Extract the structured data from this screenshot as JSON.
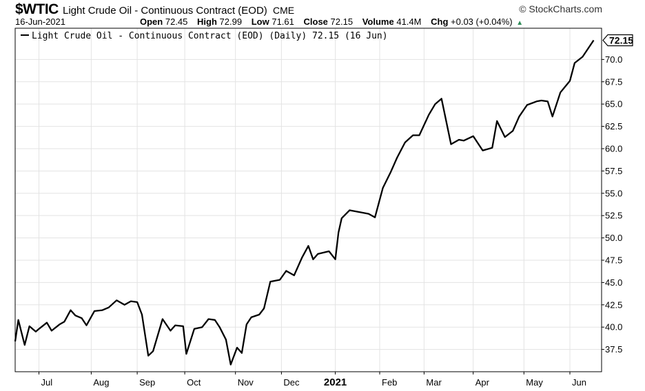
{
  "header": {
    "symbol": "$WTIC",
    "name": "Light Crude Oil - Continuous Contract (EOD)",
    "exchange": "CME",
    "brand": "© StockCharts.com",
    "date": "16-Jun-2021",
    "open_label": "Open",
    "open": "72.45",
    "high_label": "High",
    "high": "72.99",
    "low_label": "Low",
    "low": "71.61",
    "close_label": "Close",
    "close": "72.15",
    "volume_label": "Volume",
    "volume": "41.4M",
    "chg_label": "Chg",
    "chg": "+0.03 (+0.04%)",
    "chg_arrow": "▲",
    "up_color": "#2e8b57"
  },
  "chart_data": {
    "type": "line",
    "legend": "Light Crude Oil - Continuous Contract (EOD) (Daily) 72.15 (16 Jun)",
    "last_value_label": "72.15",
    "last_value": 72.15,
    "ylim": [
      35.0,
      73.5
    ],
    "y_ticks": [
      37.5,
      40.0,
      42.5,
      45.0,
      47.5,
      50.0,
      52.5,
      55.0,
      57.5,
      60.0,
      62.5,
      65.0,
      67.5,
      70.0
    ],
    "y_tick_labels": [
      "37.5",
      "40.0",
      "42.5",
      "45.0",
      "47.5",
      "50.0",
      "52.5",
      "55.0",
      "57.5",
      "60.0",
      "62.5",
      "65.0",
      "67.5",
      "70.0"
    ],
    "x_ticks": [
      {
        "label": "Jul",
        "date": "2020-07-01",
        "bold": false
      },
      {
        "label": "Aug",
        "date": "2020-08-03",
        "bold": false
      },
      {
        "label": "Sep",
        "date": "2020-09-01",
        "bold": false
      },
      {
        "label": "Oct",
        "date": "2020-10-01",
        "bold": false
      },
      {
        "label": "Nov",
        "date": "2020-11-02",
        "bold": false
      },
      {
        "label": "Dec",
        "date": "2020-12-01",
        "bold": false
      },
      {
        "label": "2021",
        "date": "2021-01-04",
        "bold": true
      },
      {
        "label": "Feb",
        "date": "2021-02-01",
        "bold": false
      },
      {
        "label": "Mar",
        "date": "2021-03-01",
        "bold": false
      },
      {
        "label": "Apr",
        "date": "2021-04-01",
        "bold": false
      },
      {
        "label": "May",
        "date": "2021-05-03",
        "bold": false
      },
      {
        "label": "Jun",
        "date": "2021-06-01",
        "bold": false
      }
    ],
    "grid": true,
    "legend_position": "top-left",
    "line_color": "#000000",
    "series": [
      {
        "x": [
          "2020-06-16",
          "2020-06-18",
          "2020-06-22",
          "2020-06-25",
          "2020-06-29",
          "2020-07-01",
          "2020-07-06",
          "2020-07-09",
          "2020-07-14",
          "2020-07-17",
          "2020-07-21",
          "2020-07-24",
          "2020-07-28",
          "2020-07-31",
          "2020-08-05",
          "2020-08-10",
          "2020-08-14",
          "2020-08-19",
          "2020-08-24",
          "2020-08-28",
          "2020-09-01",
          "2020-09-04",
          "2020-09-08",
          "2020-09-11",
          "2020-09-17",
          "2020-09-22",
          "2020-09-25",
          "2020-09-30",
          "2020-10-02",
          "2020-10-07",
          "2020-10-12",
          "2020-10-16",
          "2020-10-20",
          "2020-10-23",
          "2020-10-27",
          "2020-10-30",
          "2020-11-03",
          "2020-11-06",
          "2020-11-09",
          "2020-11-12",
          "2020-11-17",
          "2020-11-20",
          "2020-11-24",
          "2020-11-30",
          "2020-12-04",
          "2020-12-09",
          "2020-12-14",
          "2020-12-18",
          "2020-12-21",
          "2020-12-24",
          "2020-12-31",
          "2021-01-04",
          "2021-01-06",
          "2021-01-08",
          "2021-01-13",
          "2021-01-19",
          "2021-01-25",
          "2021-01-29",
          "2021-02-03",
          "2021-02-08",
          "2021-02-12",
          "2021-02-17",
          "2021-02-22",
          "2021-02-26",
          "2021-03-04",
          "2021-03-08",
          "2021-03-12",
          "2021-03-18",
          "2021-03-23",
          "2021-03-26",
          "2021-04-01",
          "2021-04-07",
          "2021-04-13",
          "2021-04-16",
          "2021-04-21",
          "2021-04-26",
          "2021-04-30",
          "2021-05-05",
          "2021-05-11",
          "2021-05-14",
          "2021-05-18",
          "2021-05-21",
          "2021-05-26",
          "2021-06-01",
          "2021-06-04",
          "2021-06-09",
          "2021-06-16"
        ],
        "values": [
          38.4,
          40.8,
          38.0,
          40.1,
          39.5,
          39.8,
          40.5,
          39.6,
          40.3,
          40.6,
          41.9,
          41.3,
          41.0,
          40.2,
          41.8,
          41.9,
          42.2,
          43.0,
          42.5,
          42.9,
          42.8,
          41.4,
          36.8,
          37.3,
          40.9,
          39.6,
          40.2,
          40.1,
          37.0,
          39.8,
          40.0,
          40.9,
          40.8,
          40.0,
          38.6,
          35.8,
          37.7,
          37.1,
          40.3,
          41.1,
          41.4,
          42.1,
          45.1,
          45.3,
          46.3,
          45.8,
          47.8,
          49.1,
          47.6,
          48.2,
          48.5,
          47.6,
          50.6,
          52.2,
          53.1,
          52.9,
          52.7,
          52.3,
          55.6,
          57.4,
          59.0,
          60.7,
          61.5,
          61.5,
          63.8,
          65.0,
          65.6,
          60.5,
          61.0,
          60.9,
          61.4,
          59.8,
          60.1,
          63.1,
          61.3,
          62.0,
          63.6,
          64.9,
          65.3,
          65.4,
          65.3,
          63.6,
          66.3,
          67.6,
          69.6,
          70.3,
          72.15
        ]
      }
    ]
  }
}
